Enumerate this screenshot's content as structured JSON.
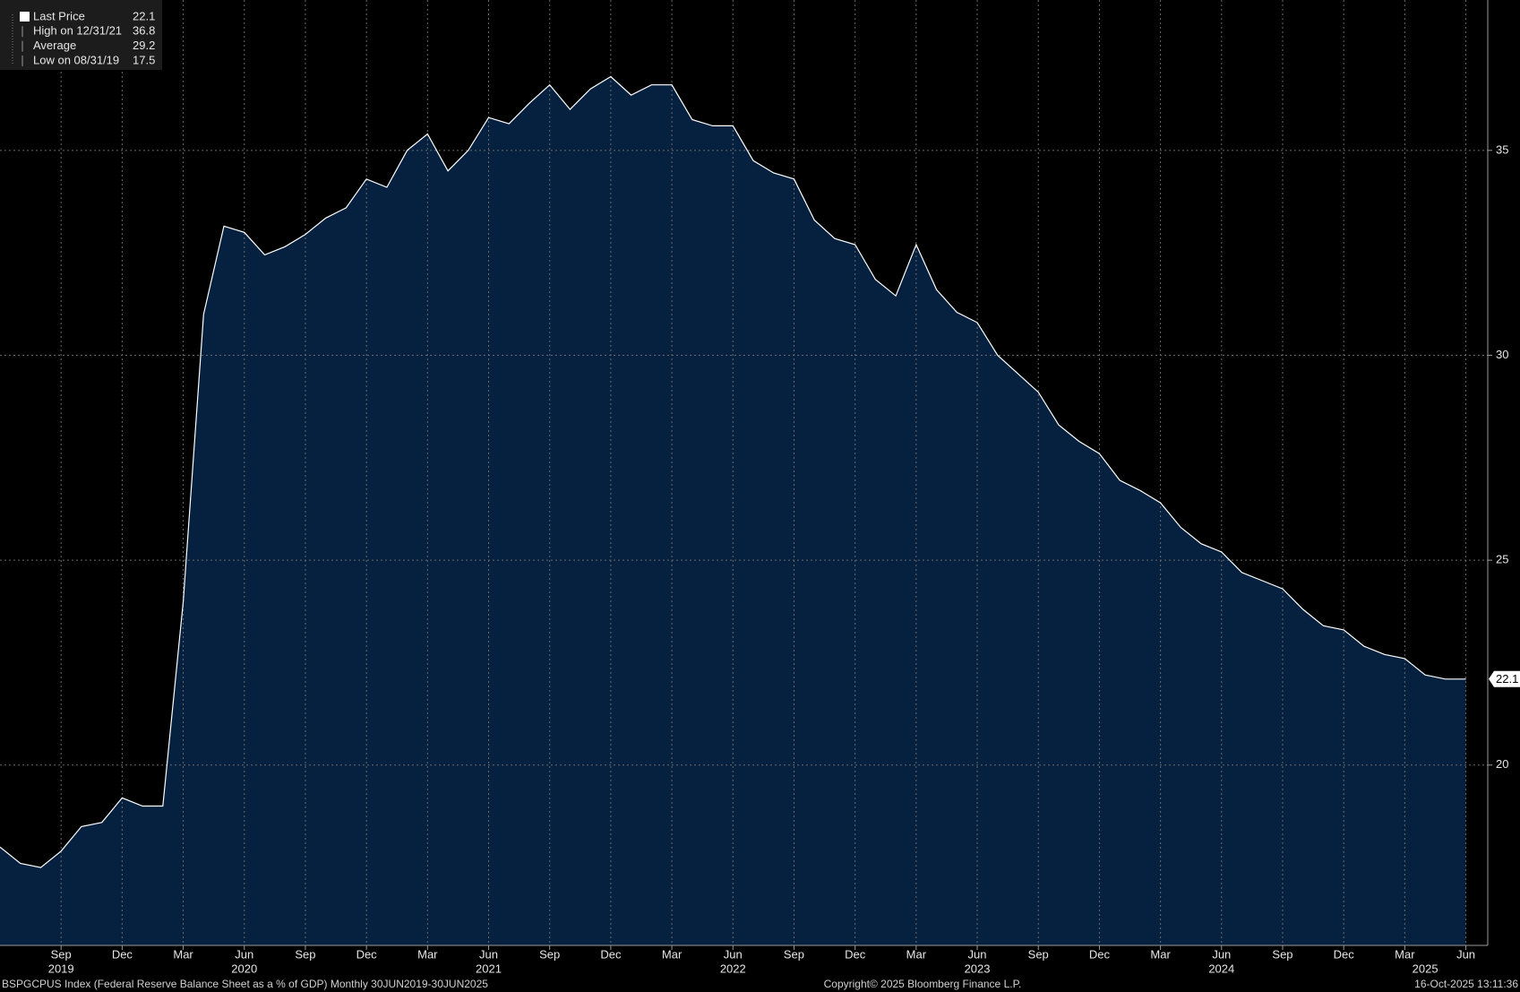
{
  "chart_data": {
    "type": "area",
    "series": [
      {
        "name": "Last Price",
        "color": "#ffffff",
        "fill": "#06203f",
        "values": [
          18.0,
          17.6,
          17.5,
          17.9,
          18.5,
          18.6,
          19.2,
          19.0,
          19.0,
          24.0,
          31.0,
          33.15,
          33.0,
          32.45,
          32.65,
          32.95,
          33.35,
          33.6,
          34.3,
          34.1,
          35.0,
          35.4,
          34.5,
          35.0,
          35.8,
          35.65,
          36.15,
          36.6,
          36.0,
          36.5,
          36.8,
          36.35,
          36.6,
          36.6,
          35.75,
          35.6,
          35.6,
          34.75,
          34.45,
          34.3,
          33.3,
          32.85,
          32.7,
          31.85,
          31.45,
          32.7,
          31.6,
          31.05,
          30.8,
          30.0,
          29.55,
          29.1,
          28.3,
          27.9,
          27.6,
          26.95,
          26.7,
          26.4,
          25.8,
          25.4,
          25.2,
          24.7,
          24.5,
          24.3,
          23.8,
          23.4,
          23.3,
          22.9,
          22.7,
          22.6,
          22.2,
          22.1,
          22.1
        ]
      }
    ],
    "categories": [
      null,
      null,
      null,
      "Sep",
      null,
      null,
      "Dec",
      null,
      null,
      "Mar",
      null,
      null,
      "Jun",
      null,
      null,
      "Sep",
      null,
      null,
      "Dec",
      null,
      null,
      "Mar",
      null,
      null,
      "Jun",
      null,
      null,
      "Sep",
      null,
      null,
      "Dec",
      null,
      null,
      "Mar",
      null,
      null,
      "Jun",
      null,
      null,
      "Sep",
      null,
      null,
      "Dec",
      null,
      null,
      "Mar",
      null,
      null,
      "Jun",
      null,
      null,
      "Sep",
      null,
      null,
      "Dec",
      null,
      null,
      "Mar",
      null,
      null,
      "Jun",
      null,
      null,
      "Sep",
      null,
      null,
      "Dec",
      null,
      null,
      "Mar",
      null,
      null,
      "Jun"
    ],
    "years": [
      null,
      null,
      null,
      "2019",
      null,
      null,
      null,
      null,
      null,
      null,
      null,
      null,
      "2020",
      null,
      null,
      null,
      null,
      null,
      null,
      null,
      null,
      null,
      null,
      null,
      "2021",
      null,
      null,
      null,
      null,
      null,
      null,
      null,
      null,
      null,
      null,
      null,
      "2022",
      null,
      null,
      null,
      null,
      null,
      null,
      null,
      null,
      null,
      null,
      null,
      "2023",
      null,
      null,
      null,
      null,
      null,
      null,
      null,
      null,
      null,
      null,
      null,
      "2024",
      null,
      null,
      null,
      null,
      null,
      null,
      null,
      null,
      null,
      "2025",
      null,
      null
    ],
    "ylim": [
      15.6,
      38.67
    ],
    "yticks": [
      20,
      25,
      30,
      35
    ],
    "grid": true,
    "legend_position": "top-left",
    "stats": [
      {
        "label": "High on 12/31/21",
        "value": 36.8
      },
      {
        "label": "Average",
        "value": 29.2
      },
      {
        "label": "Low on 08/31/19",
        "value": 17.5
      }
    ],
    "footer": {
      "left": "BSPGCPUS Index (Federal Reserve Balance Sheet as a % of GDP) Monthly 30JUN2019-30JUN2025",
      "center": "Copyright© 2025 Bloomberg Finance L.P.",
      "right": "16-Oct-2025 13:11:36"
    }
  }
}
